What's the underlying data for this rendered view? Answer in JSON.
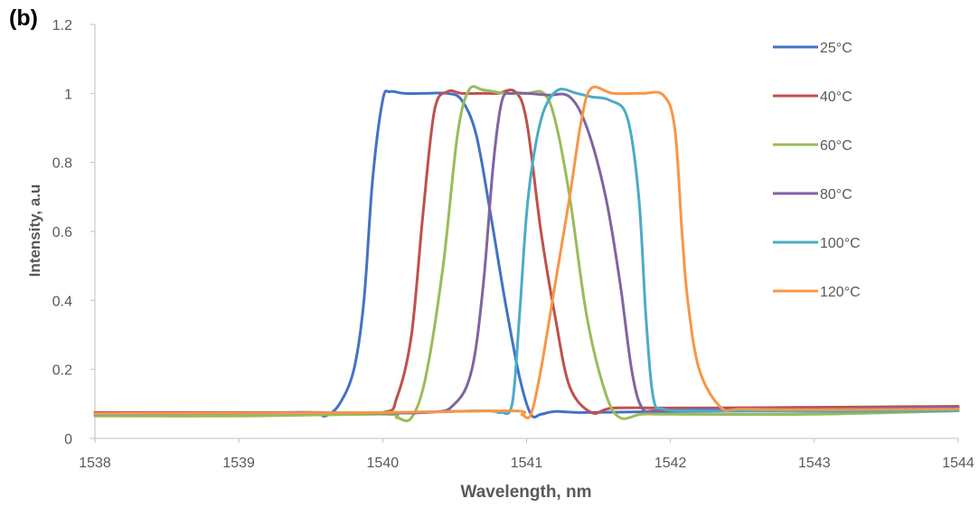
{
  "panel_label": "(b)",
  "chart_data": {
    "type": "line",
    "title": "",
    "xlabel": "Wavelength, nm",
    "ylabel": "Intensity, a.u",
    "xlim": [
      1538,
      1544
    ],
    "ylim": [
      0,
      1.2
    ],
    "xticks": [
      "1538",
      "1539",
      "1540",
      "1541",
      "1542",
      "1543",
      "1544"
    ],
    "yticks": [
      "0",
      "0.2",
      "0.4",
      "0.6",
      "0.8",
      "1",
      "1.2"
    ],
    "grid": false,
    "legend_position": "right",
    "series": [
      {
        "name": "25°C",
        "color": "#4472C4",
        "x": [
          1538,
          1539,
          1539.5,
          1539.6,
          1539.7,
          1539.8,
          1539.87,
          1539.93,
          1540.0,
          1540.05,
          1540.15,
          1540.3,
          1540.45,
          1540.55,
          1540.65,
          1540.75,
          1540.85,
          1540.95,
          1541.03,
          1541.1,
          1541.2,
          1541.4,
          1542,
          1543,
          1544
        ],
        "y": [
          0.072,
          0.073,
          0.075,
          0.065,
          0.1,
          0.2,
          0.4,
          0.75,
          0.98,
          1.005,
          1.0,
          1.0,
          1.0,
          0.98,
          0.88,
          0.65,
          0.4,
          0.18,
          0.07,
          0.07,
          0.078,
          0.075,
          0.078,
          0.08,
          0.082
        ]
      },
      {
        "name": "40°C",
        "color": "#C0504D",
        "x": [
          1538,
          1539.5,
          1540.0,
          1540.1,
          1540.2,
          1540.28,
          1540.36,
          1540.45,
          1540.55,
          1540.7,
          1540.8,
          1540.92,
          1541.0,
          1541.1,
          1541.2,
          1541.3,
          1541.45,
          1541.6,
          1542,
          1543,
          1544
        ],
        "y": [
          0.075,
          0.075,
          0.075,
          0.12,
          0.3,
          0.65,
          0.95,
          1.005,
          1.0,
          1.0,
          1.0,
          1.005,
          0.92,
          0.6,
          0.35,
          0.15,
          0.075,
          0.088,
          0.088,
          0.09,
          0.093
        ]
      },
      {
        "name": "60°C",
        "color": "#9BBB59",
        "x": [
          1538,
          1539,
          1540,
          1540.1,
          1540.2,
          1540.3,
          1540.42,
          1540.52,
          1540.6,
          1540.7,
          1540.85,
          1541.0,
          1541.12,
          1541.2,
          1541.3,
          1541.42,
          1541.55,
          1541.65,
          1541.8,
          1542,
          1543,
          1544
        ],
        "y": [
          0.065,
          0.065,
          0.07,
          0.06,
          0.06,
          0.18,
          0.5,
          0.88,
          1.01,
          1.01,
          1.0,
          1.0,
          1.0,
          0.92,
          0.7,
          0.35,
          0.13,
          0.06,
          0.07,
          0.07,
          0.07,
          0.08
        ]
      },
      {
        "name": "80°C",
        "color": "#8064A2",
        "x": [
          1538,
          1539.5,
          1540.3,
          1540.5,
          1540.62,
          1540.7,
          1540.77,
          1540.83,
          1540.9,
          1541.0,
          1541.15,
          1541.3,
          1541.42,
          1541.55,
          1541.65,
          1541.73,
          1541.8,
          1541.9,
          1542.2,
          1543,
          1544
        ],
        "y": [
          0.072,
          0.075,
          0.075,
          0.1,
          0.2,
          0.45,
          0.8,
          0.98,
          1.0,
          1.0,
          0.995,
          0.99,
          0.9,
          0.7,
          0.45,
          0.2,
          0.09,
          0.08,
          0.085,
          0.085,
          0.09
        ]
      },
      {
        "name": "100°C",
        "color": "#4BACC6",
        "x": [
          1538,
          1540,
          1540.7,
          1540.82,
          1540.9,
          1540.95,
          1541.0,
          1541.05,
          1541.12,
          1541.22,
          1541.35,
          1541.45,
          1541.58,
          1541.7,
          1541.78,
          1541.83,
          1541.88,
          1541.95,
          1542.2,
          1543,
          1544
        ],
        "y": [
          0.07,
          0.075,
          0.08,
          0.075,
          0.1,
          0.35,
          0.65,
          0.82,
          0.95,
          1.01,
          1.0,
          0.99,
          0.98,
          0.93,
          0.7,
          0.35,
          0.12,
          0.085,
          0.08,
          0.078,
          0.08
        ]
      },
      {
        "name": "120°C",
        "color": "#F79646",
        "x": [
          1538,
          1540,
          1540.9,
          1540.97,
          1541.03,
          1541.1,
          1541.2,
          1541.3,
          1541.38,
          1541.45,
          1541.6,
          1541.8,
          1541.95,
          1542.03,
          1542.08,
          1542.12,
          1542.2,
          1542.35,
          1542.5,
          1543,
          1544
        ],
        "y": [
          0.072,
          0.075,
          0.08,
          0.068,
          0.07,
          0.2,
          0.45,
          0.7,
          0.92,
          1.015,
          1.0,
          1.0,
          0.995,
          0.9,
          0.6,
          0.4,
          0.2,
          0.09,
          0.085,
          0.083,
          0.085
        ]
      }
    ]
  }
}
